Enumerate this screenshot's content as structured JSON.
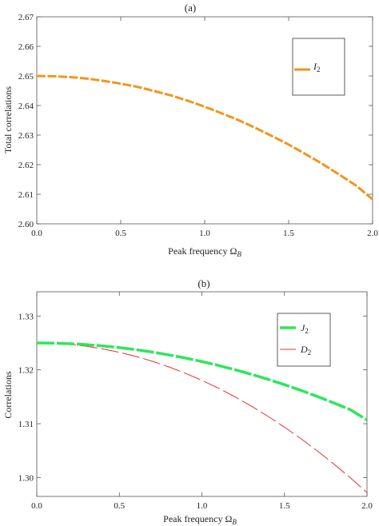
{
  "chart_data": [
    {
      "type": "line",
      "panel_label": "(a)",
      "xlabel": "Peak frequency Ω",
      "xlabel_sub": "B",
      "ylabel": "Total correlations",
      "xlim": [
        0.0,
        2.0
      ],
      "ylim": [
        2.6,
        2.67
      ],
      "xticks": [
        "0.0",
        "0.5",
        "1.0",
        "1.5",
        "2.0"
      ],
      "yticks": [
        "2.60",
        "2.61",
        "2.62",
        "2.63",
        "2.64",
        "2.65",
        "2.66",
        "2.67"
      ],
      "grid": false,
      "legend_position": "top-right",
      "x": [
        0.0,
        0.1,
        0.2,
        0.3,
        0.4,
        0.5,
        0.6,
        0.7,
        0.8,
        0.9,
        1.0,
        1.1,
        1.2,
        1.3,
        1.4,
        1.5,
        1.6,
        1.7,
        1.8,
        1.9,
        2.0
      ],
      "series": [
        {
          "name": "I",
          "name_sub": "2",
          "color": "#f0961e",
          "style": "thick-dashed",
          "values": [
            2.65,
            2.6499,
            2.6496,
            2.6491,
            2.6483,
            2.6474,
            2.6463,
            2.6449,
            2.6434,
            2.6416,
            2.6396,
            2.6374,
            2.6351,
            2.6325,
            2.6297,
            2.6268,
            2.6236,
            2.6203,
            2.6167,
            2.613,
            2.6083
          ]
        }
      ]
    },
    {
      "type": "line",
      "panel_label": "(b)",
      "xlabel": "Peak frequency Ω",
      "xlabel_sub": "B",
      "ylabel": "Correlations",
      "xlim": [
        0.0,
        2.0
      ],
      "ylim": [
        1.2965,
        1.3345
      ],
      "xticks": [
        "0.0",
        "0.5",
        "1.0",
        "1.5",
        "2.0"
      ],
      "yticks": [
        "1.30",
        "1.31",
        "1.32",
        "1.33"
      ],
      "ytick_values": [
        1.3,
        1.31,
        1.32,
        1.33
      ],
      "grid": false,
      "legend_position": "top-right",
      "x": [
        0.0,
        0.1,
        0.2,
        0.3,
        0.4,
        0.5,
        0.6,
        0.7,
        0.8,
        0.9,
        1.0,
        1.1,
        1.2,
        1.3,
        1.4,
        1.5,
        1.6,
        1.7,
        1.8,
        1.9,
        2.0
      ],
      "series": [
        {
          "name": "J",
          "name_sub": "2",
          "color": "#2ee65a",
          "style": "thick-dashed",
          "values": [
            1.325,
            1.32497,
            1.32486,
            1.32469,
            1.32445,
            1.32413,
            1.32375,
            1.3233,
            1.32278,
            1.3222,
            1.32155,
            1.32082,
            1.32003,
            1.31917,
            1.31825,
            1.31725,
            1.31619,
            1.31505,
            1.31385,
            1.31258,
            1.3107
          ]
        },
        {
          "name": "D",
          "name_sub": "2",
          "color": "#e83030",
          "style": "thin-dashed",
          "values": [
            1.325,
            1.32494,
            1.32472,
            1.32438,
            1.32389,
            1.32326,
            1.3225,
            1.3216,
            1.32055,
            1.31937,
            1.31805,
            1.3166,
            1.315,
            1.31326,
            1.31138,
            1.30937,
            1.30722,
            1.30493,
            1.3025,
            1.29993,
            1.2972
          ]
        }
      ]
    }
  ]
}
